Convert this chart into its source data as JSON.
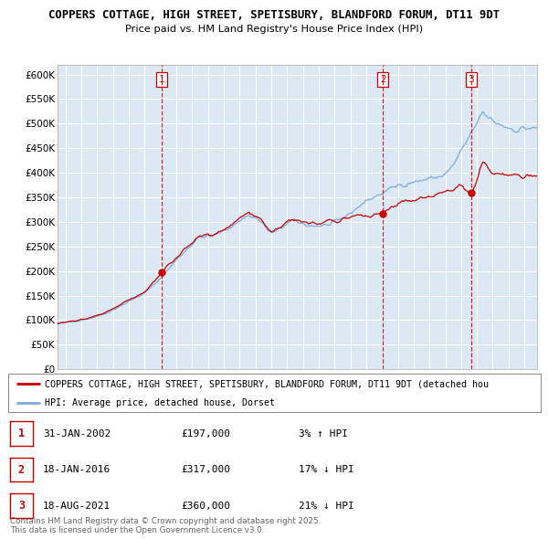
{
  "title_line1": "COPPERS COTTAGE, HIGH STREET, SPETISBURY, BLANDFORD FORUM, DT11 9DT",
  "title_line2": "Price paid vs. HM Land Registry's House Price Index (HPI)",
  "ylim": [
    0,
    620000
  ],
  "yticks": [
    0,
    50000,
    100000,
    150000,
    200000,
    250000,
    300000,
    350000,
    400000,
    450000,
    500000,
    550000,
    600000
  ],
  "legend_red": "COPPERS COTTAGE, HIGH STREET, SPETISBURY, BLANDFORD FORUM, DT11 9DT (detached hou",
  "legend_blue": "HPI: Average price, detached house, Dorset",
  "sale1_date": "31-JAN-2002",
  "sale1_price": 197000,
  "sale1_hpi": "3% ↑ HPI",
  "sale1_label": "1",
  "sale1_x": 2002.08,
  "sale2_date": "18-JAN-2016",
  "sale2_price": 317000,
  "sale2_hpi": "17% ↓ HPI",
  "sale2_label": "2",
  "sale2_x": 2016.05,
  "sale3_date": "18-AUG-2021",
  "sale3_price": 360000,
  "sale3_hpi": "21% ↓ HPI",
  "sale3_label": "3",
  "sale3_x": 2021.63,
  "red_color": "#cc0000",
  "blue_color": "#7aade0",
  "bg_color": "#ffffff",
  "chart_bg": "#dde8f5",
  "grid_color": "#ffffff",
  "footnote": "Contains HM Land Registry data © Crown copyright and database right 2025.\nThis data is licensed under the Open Government Licence v3.0.",
  "xmin": 1995.5,
  "xmax": 2025.8
}
